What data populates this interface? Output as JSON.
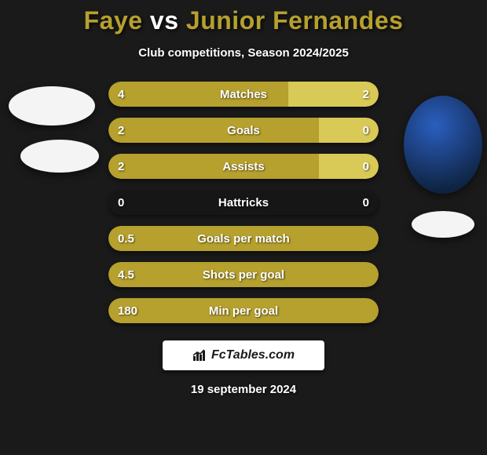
{
  "title": {
    "player1": "Faye",
    "vs": "vs",
    "player2": "Junior Fernandes",
    "player1_color": "#b6a02e",
    "vs_color": "#ffffff",
    "player2_color": "#b6a02e"
  },
  "subtitle": "Club competitions, Season 2024/2025",
  "colors": {
    "background": "#1a1a1a",
    "bar_left": "#b6a02e",
    "bar_right": "#d9c957",
    "text": "#ffffff"
  },
  "avatars": {
    "left": [
      {
        "shape": "ellipse",
        "bg": "#f4f4f4"
      },
      {
        "shape": "ellipse",
        "bg": "#f4f4f4"
      }
    ],
    "right": [
      {
        "shape": "circle",
        "bg": "radial"
      },
      {
        "shape": "ellipse",
        "bg": "#f4f4f4"
      }
    ]
  },
  "bars": {
    "compare": [
      {
        "label": "Matches",
        "left_val": "4",
        "right_val": "2",
        "left_pct": 66.7,
        "right_pct": 33.3
      },
      {
        "label": "Goals",
        "left_val": "2",
        "right_val": "0",
        "left_pct": 78.0,
        "right_pct": 22.0
      },
      {
        "label": "Assists",
        "left_val": "2",
        "right_val": "0",
        "left_pct": 78.0,
        "right_pct": 22.0
      },
      {
        "label": "Hattricks",
        "left_val": "0",
        "right_val": "0",
        "left_pct": 0.0,
        "right_pct": 0.0
      }
    ],
    "single": [
      {
        "label": "Goals per match",
        "val": "0.5",
        "pct": 100
      },
      {
        "label": "Shots per goal",
        "val": "4.5",
        "pct": 100
      },
      {
        "label": "Min per goal",
        "val": "180",
        "pct": 100
      }
    ]
  },
  "footer": {
    "site": "FcTables.com",
    "date": "19 september 2024"
  }
}
